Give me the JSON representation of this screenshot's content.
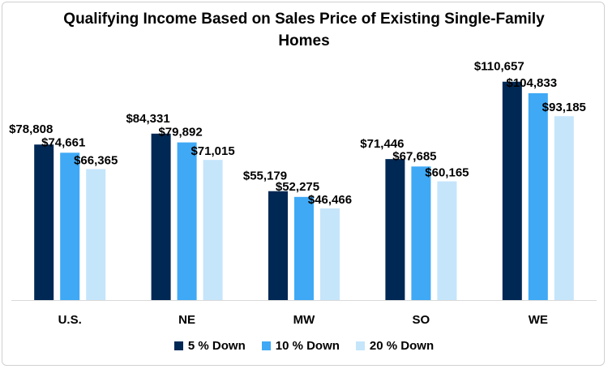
{
  "chart_data": {
    "type": "bar",
    "title_line1": "Qualifying Income Based on Sales Price of Existing Single-Family",
    "title_line2": "Homes",
    "categories": [
      "U.S.",
      "NE",
      "MW",
      "SO",
      "WE"
    ],
    "series": [
      {
        "name": "5 % Down",
        "color": "#002855",
        "values": [
          78808,
          84331,
          55179,
          71446,
          110657
        ],
        "labels": [
          "$78,808",
          "$84,331",
          "$55,179",
          "$71,446",
          "$110,657"
        ]
      },
      {
        "name": "10 % Down",
        "color": "#3fa9f5",
        "values": [
          74661,
          79892,
          52275,
          67685,
          104833
        ],
        "labels": [
          "$74,661",
          "$79,892",
          "$52,275",
          "$67,685",
          "$104,833"
        ]
      },
      {
        "name": "20 % Down",
        "color": "#c5e5fb",
        "values": [
          66365,
          71015,
          46466,
          60165,
          93185
        ],
        "labels": [
          "$66,365",
          "$71,015",
          "$46,466",
          "$60,165",
          "$93,185"
        ]
      }
    ],
    "ylim": [
      0,
      120000
    ],
    "grid": false,
    "legend_position": "bottom"
  }
}
